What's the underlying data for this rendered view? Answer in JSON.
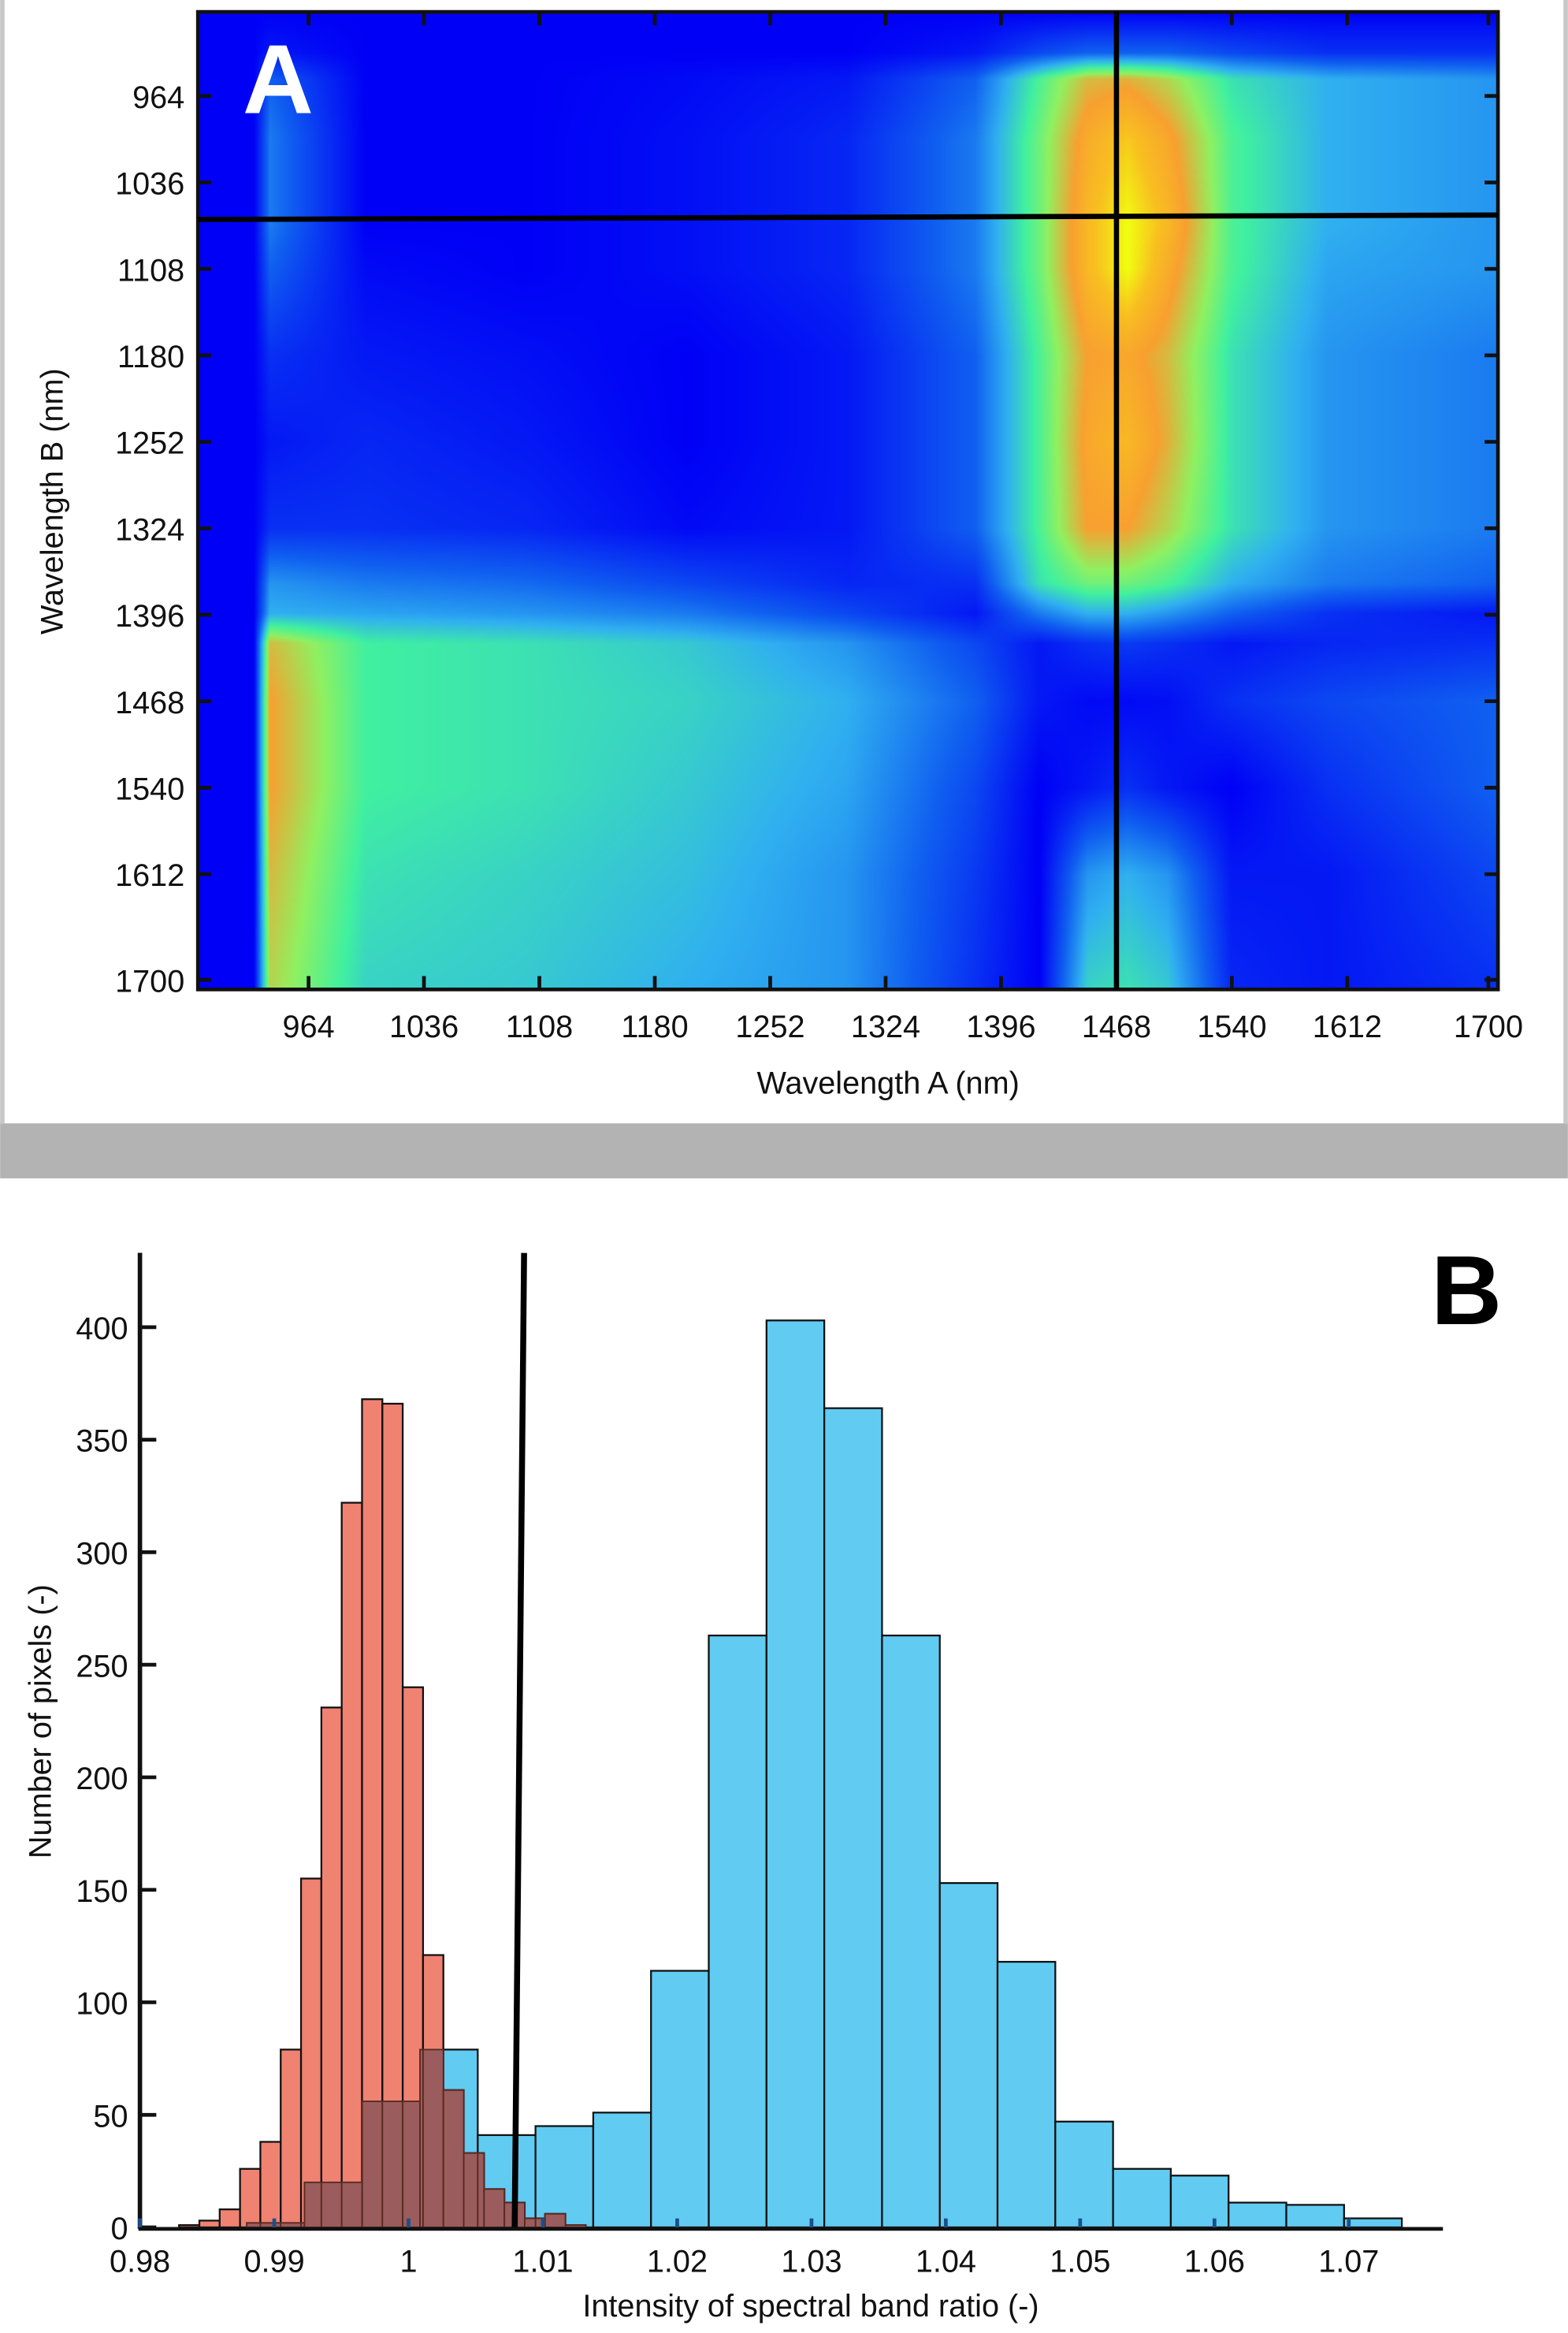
{
  "chart_data": [
    {
      "type": "heatmap",
      "panel_label": "A",
      "xlabel": "Wavelength A (nm)",
      "ylabel": "Wavelength B (nm)",
      "xlim": [
        895,
        1706
      ],
      "ylim": [
        894,
        1708
      ],
      "x_ticks": [
        "964",
        "1036",
        "1108",
        "1180",
        "1252",
        "1324",
        "1396",
        "1468",
        "1540",
        "1612",
        "1700"
      ],
      "y_ticks": [
        "964",
        "1036",
        "1108",
        "1180",
        "1252",
        "1324",
        "1396",
        "1468",
        "1540",
        "1612",
        "1700"
      ],
      "colormap": [
        "#0000f6",
        "#1060f0",
        "#30b0f0",
        "#40f0a0",
        "#90f060",
        "#f8a030",
        "#f8c020",
        "#f0ff10"
      ],
      "grid_a": [
        895,
        930,
        940,
        1000,
        1100,
        1200,
        1300,
        1380,
        1420,
        1450,
        1475,
        1500,
        1540,
        1600,
        1706
      ],
      "grid_b": [
        894,
        928,
        950,
        1000,
        1072,
        1108,
        1180,
        1252,
        1324,
        1370,
        1395,
        1420,
        1468,
        1540,
        1612,
        1708
      ],
      "values": [
        [
          0,
          0,
          0,
          0,
          0,
          0,
          0,
          0,
          0,
          0,
          0,
          0,
          0,
          0,
          0
        ],
        [
          0,
          0,
          0.05,
          0,
          0,
          0,
          0,
          0.05,
          0.15,
          0.2,
          0.2,
          0.2,
          0.15,
          0.1,
          0.1
        ],
        [
          0,
          0,
          0.2,
          0,
          0,
          0.02,
          0.05,
          0.2,
          0.5,
          0.7,
          0.72,
          0.65,
          0.45,
          0.35,
          0.3
        ],
        [
          0,
          0,
          0.25,
          0,
          0,
          0.03,
          0.08,
          0.25,
          0.55,
          0.8,
          0.9,
          0.78,
          0.5,
          0.35,
          0.3
        ],
        [
          0,
          0,
          0.25,
          0,
          0,
          0.03,
          0.08,
          0.25,
          0.55,
          0.85,
          1.0,
          0.85,
          0.5,
          0.35,
          0.3
        ],
        [
          0,
          0,
          0.2,
          0.02,
          0,
          0.03,
          0.08,
          0.25,
          0.55,
          0.85,
          1.0,
          0.8,
          0.5,
          0.33,
          0.3
        ],
        [
          0,
          0,
          0.1,
          0.05,
          0.03,
          0,
          0.05,
          0.2,
          0.5,
          0.75,
          0.78,
          0.7,
          0.45,
          0.3,
          0.25
        ],
        [
          0,
          0,
          0.05,
          0.08,
          0.05,
          0,
          0.05,
          0.2,
          0.5,
          0.78,
          0.85,
          0.72,
          0.45,
          0.3,
          0.25
        ],
        [
          0,
          0,
          0.1,
          0.1,
          0.08,
          0.02,
          0.05,
          0.2,
          0.5,
          0.75,
          0.75,
          0.65,
          0.45,
          0.3,
          0.25
        ],
        [
          0,
          0,
          0.3,
          0.25,
          0.22,
          0.15,
          0.08,
          0.1,
          0.45,
          0.55,
          0.55,
          0.5,
          0.35,
          0.25,
          0.2
        ],
        [
          0,
          0,
          0.35,
          0.33,
          0.3,
          0.25,
          0.15,
          0.05,
          0.25,
          0.35,
          0.35,
          0.3,
          0.2,
          0.1,
          0.05
        ],
        [
          0,
          0,
          0.7,
          0.48,
          0.45,
          0.4,
          0.3,
          0.15,
          0.05,
          0.1,
          0.12,
          0.1,
          0.05,
          0.08,
          0.1
        ],
        [
          0,
          0,
          0.75,
          0.48,
          0.45,
          0.42,
          0.35,
          0.2,
          0.05,
          0.02,
          0.02,
          0.03,
          0.1,
          0.15,
          0.2
        ],
        [
          0,
          0,
          0.75,
          0.48,
          0.45,
          0.4,
          0.33,
          0.15,
          0,
          0.05,
          0.1,
          0.05,
          0,
          0.1,
          0.2
        ],
        [
          0,
          0,
          0.7,
          0.45,
          0.42,
          0.38,
          0.3,
          0.12,
          0,
          0.3,
          0.35,
          0.3,
          0.05,
          0.05,
          0.15
        ],
        [
          0,
          0,
          0.65,
          0.42,
          0.4,
          0.35,
          0.3,
          0.1,
          0,
          0.42,
          0.45,
          0.4,
          0.08,
          0.05,
          0.1
        ]
      ],
      "crosshair": {
        "a": 1468,
        "b": 1065
      }
    },
    {
      "type": "bar",
      "panel_label": "B",
      "xlabel": "Intensity of spectral band ratio (-)",
      "ylabel": "Number of pixels (-)",
      "xlim": [
        0.98,
        1.077
      ],
      "ylim": [
        0,
        430
      ],
      "x_ticks": [
        "0.98",
        "0.99",
        "1",
        "1.01",
        "1.02",
        "1.03",
        "1.04",
        "1.05",
        "1.06",
        "1.07"
      ],
      "y_ticks": [
        "0",
        "50",
        "100",
        "150",
        "200",
        "250",
        "300",
        "350",
        "400"
      ],
      "series": [
        {
          "color": "#61cbf2",
          "bin_start": 0.98795,
          "bin_width": 0.0043,
          "counts": [
            2,
            20,
            56,
            79,
            41,
            45,
            51,
            114,
            263,
            403,
            364,
            263,
            153,
            118,
            47,
            26,
            23,
            11,
            10,
            4
          ]
        },
        {
          "color": "#f08272",
          "bin_start": 0.98291,
          "bin_width": 0.001514,
          "counts": [
            1,
            3,
            8,
            26,
            38,
            79,
            155,
            231,
            322,
            368,
            366,
            240,
            121,
            61,
            33,
            17,
            11,
            4,
            6,
            1
          ]
        }
      ],
      "overlap_color": "#9a5c5c",
      "threshold_line": {
        "x_bottom": 1.0079,
        "x_top": 1.0086,
        "y_top": 433
      }
    }
  ]
}
